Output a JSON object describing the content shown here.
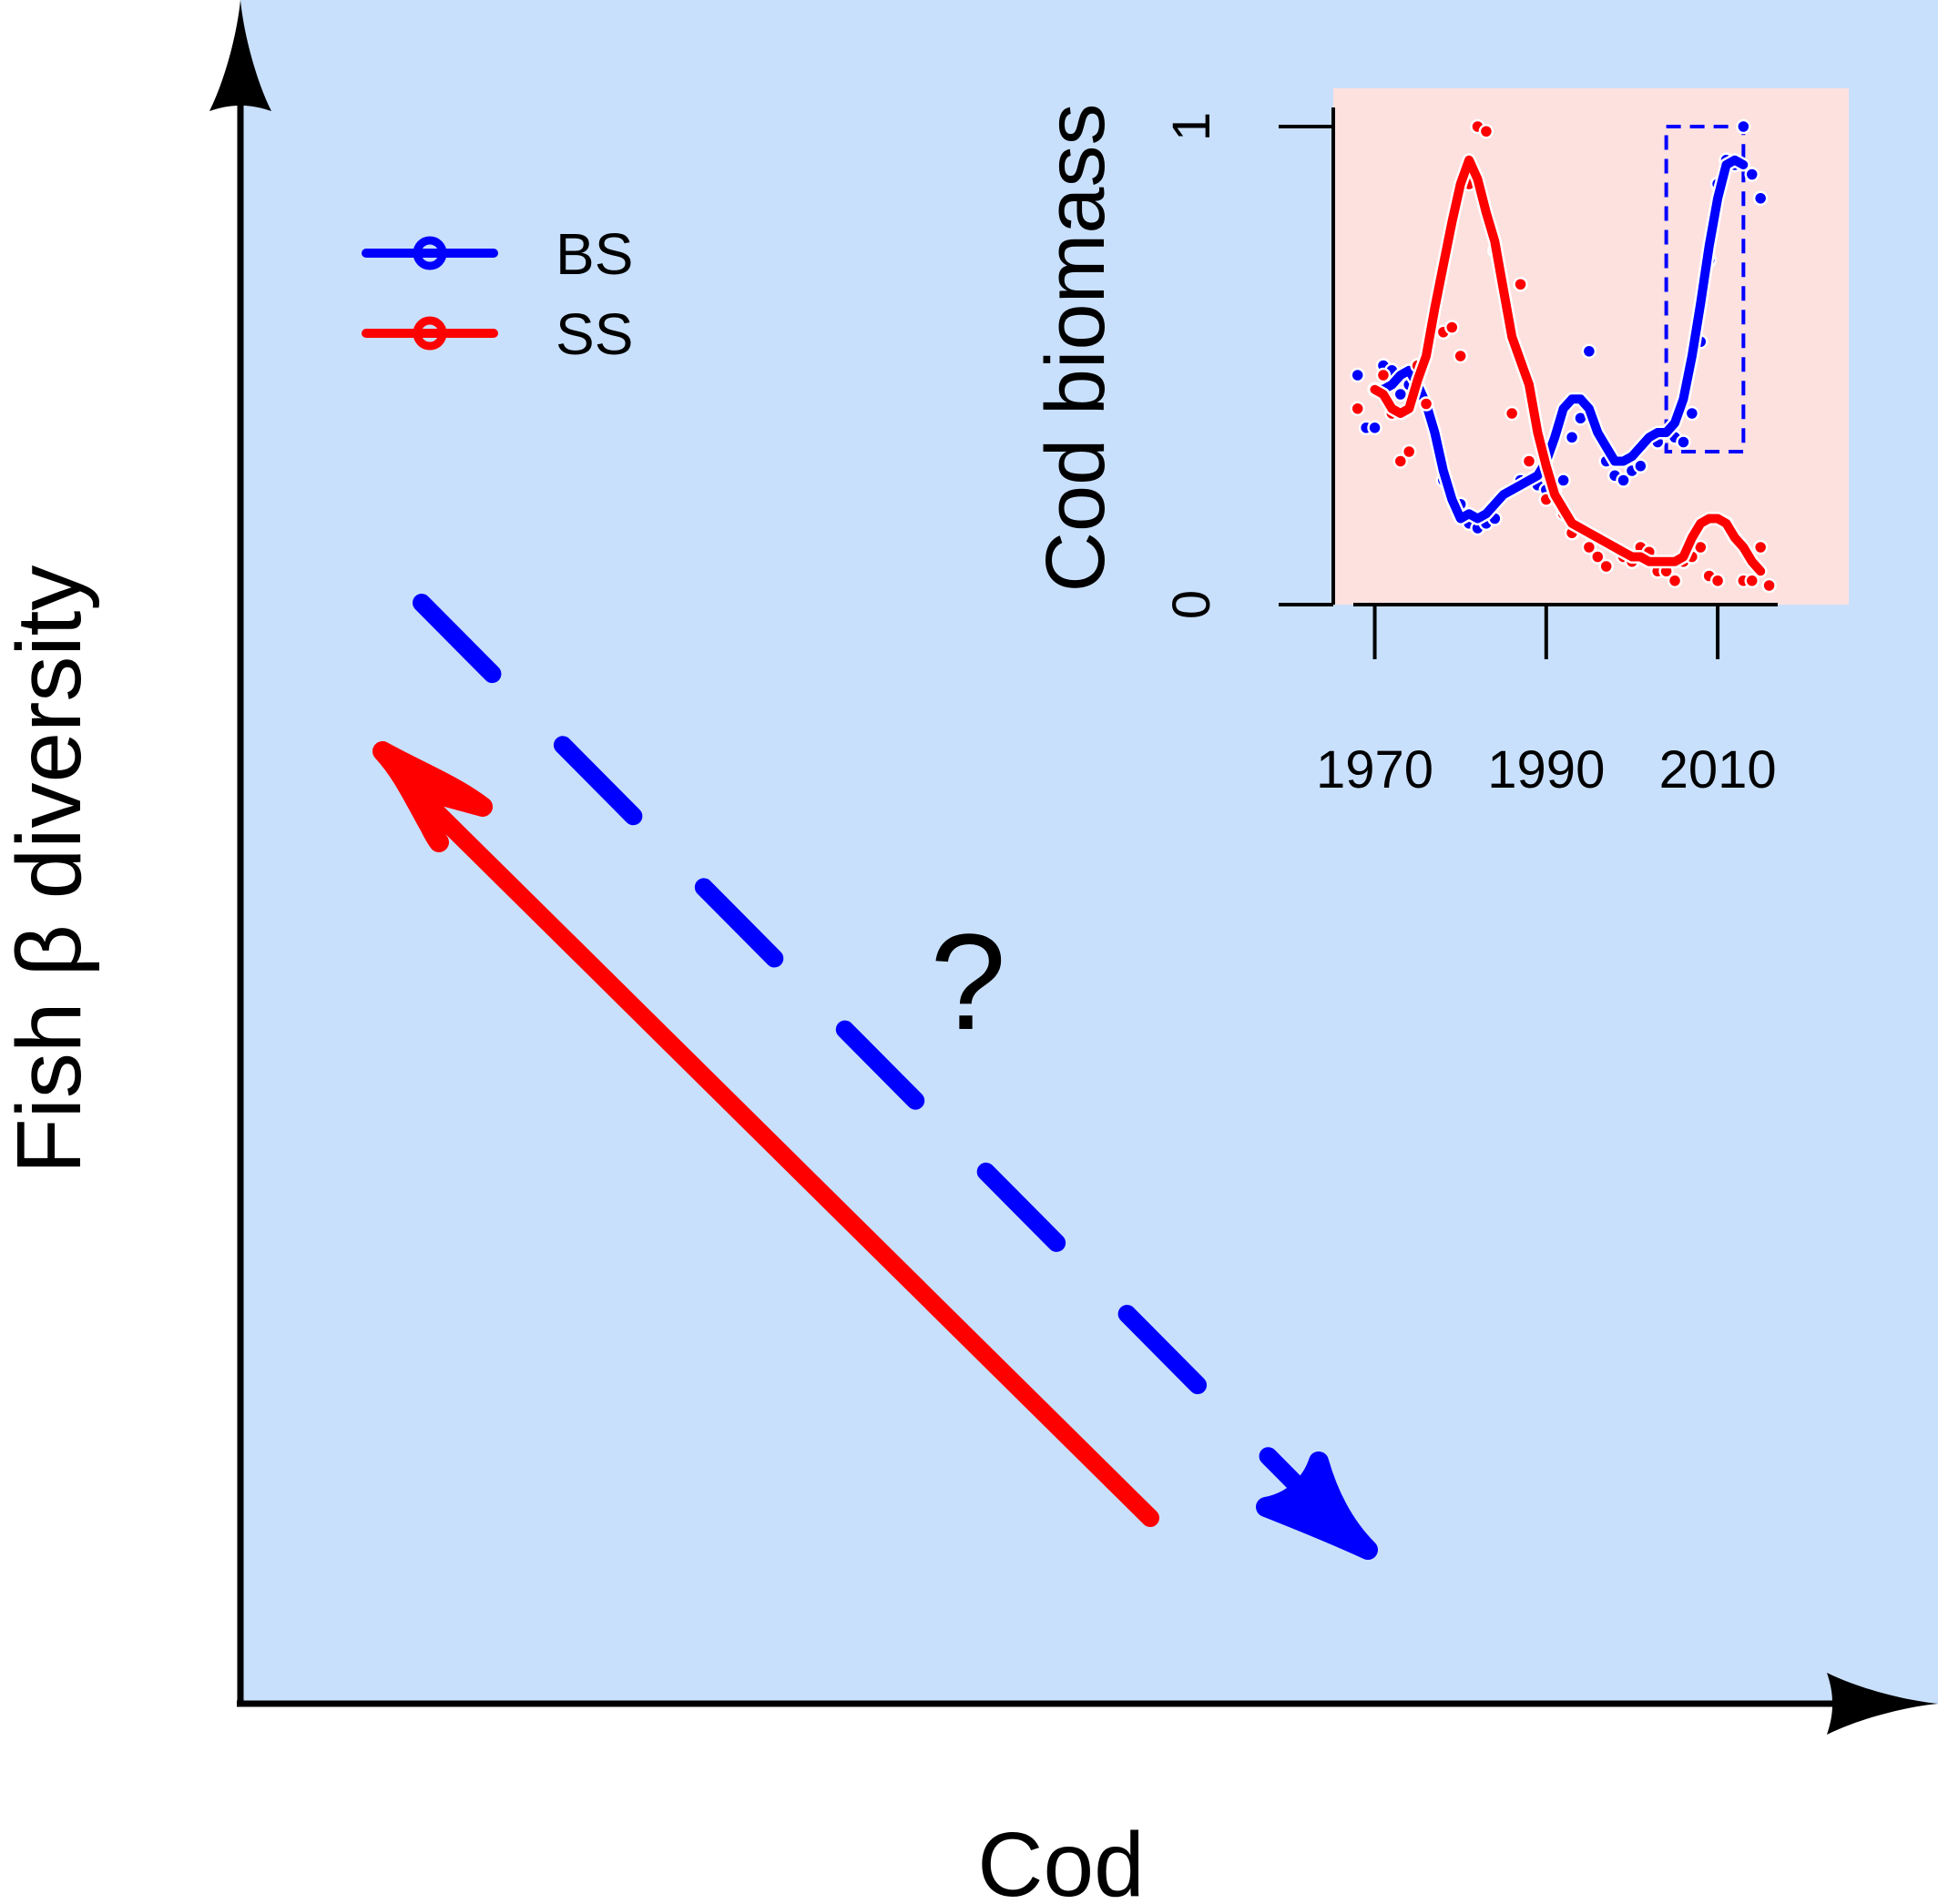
{
  "colors": {
    "panel_background": "#c9e0fc",
    "inset_background": "#fde1df",
    "bs": "#0000ff",
    "ss": "#ff0000",
    "axis": "#000000"
  },
  "main_panel": {
    "xlabel": "Cod",
    "ylabel": "Fish β diversity",
    "question_mark": "?",
    "legend": {
      "position": "top-left",
      "entries": [
        {
          "label": "BS",
          "color": "#0000ff"
        },
        {
          "label": "SS",
          "color": "#ff0000"
        }
      ]
    },
    "arrows": [
      {
        "series": "SS",
        "style": "solid",
        "direction": "cod down, β diversity up"
      },
      {
        "series": "BS",
        "style": "dashed",
        "direction": "cod up, β diversity down",
        "uncertain": true
      }
    ]
  },
  "chart_data": {
    "type": "line",
    "inset": true,
    "ylabel": "Cod biomass",
    "xlabel": "",
    "xlim": [
      1967.5,
      2017
    ],
    "ylim": [
      0,
      1.04
    ],
    "xticks": [
      1970,
      1990,
      2010
    ],
    "yticks": [
      0,
      1
    ],
    "xtick_labels": [
      "1970",
      "1990",
      "2010"
    ],
    "ytick_labels": [
      "0",
      "1"
    ],
    "grid": false,
    "highlight_box": {
      "color": "#0000ff",
      "style": "dashed",
      "x": [
        2004,
        2013
      ],
      "y": [
        0.32,
        1.0
      ]
    },
    "series": [
      {
        "name": "BS",
        "color": "#0000ff",
        "smooth": {
          "x": [
            1970,
            1971,
            1972,
            1973,
            1974,
            1975,
            1976,
            1977,
            1978,
            1979,
            1980,
            1981,
            1982,
            1983,
            1984,
            1985,
            1986,
            1987,
            1988,
            1989,
            1990,
            1991,
            1992,
            1993,
            1994,
            1995,
            1996,
            1997,
            1998,
            1999,
            2000,
            2001,
            2002,
            2003,
            2004,
            2005,
            2006,
            2007,
            2008,
            2009,
            2010,
            2011,
            2012,
            2013
          ],
          "y": [
            0.45,
            0.45,
            0.46,
            0.48,
            0.49,
            0.46,
            0.42,
            0.36,
            0.28,
            0.22,
            0.18,
            0.19,
            0.18,
            0.19,
            0.21,
            0.23,
            0.24,
            0.25,
            0.26,
            0.27,
            0.3,
            0.35,
            0.41,
            0.43,
            0.43,
            0.41,
            0.36,
            0.33,
            0.3,
            0.3,
            0.31,
            0.33,
            0.35,
            0.36,
            0.36,
            0.38,
            0.43,
            0.52,
            0.63,
            0.75,
            0.85,
            0.92,
            0.93,
            0.92
          ]
        },
        "points": {
          "x": [
            1968,
            1969,
            1970,
            1971,
            1972,
            1973,
            1974,
            1976,
            1978,
            1980,
            1981,
            1982,
            1983,
            1984,
            1987,
            1988,
            1989,
            1990,
            1991,
            1992,
            1993,
            1994,
            1995,
            1997,
            1998,
            1999,
            2000,
            2001,
            2003,
            2004,
            2005,
            2006,
            2007,
            2008,
            2009,
            2010,
            2011,
            2012,
            2013,
            2014,
            2015
          ],
          "y": [
            0.48,
            0.37,
            0.37,
            0.5,
            0.49,
            0.44,
            0.46,
            0.42,
            0.26,
            0.21,
            0.17,
            0.16,
            0.17,
            0.18,
            0.26,
            0.3,
            0.25,
            0.24,
            0.24,
            0.26,
            0.35,
            0.39,
            0.53,
            0.3,
            0.27,
            0.26,
            0.28,
            0.29,
            0.34,
            0.36,
            0.35,
            0.34,
            0.4,
            0.55,
            0.72,
            0.88,
            0.93,
            0.92,
            1.0,
            0.9,
            0.85
          ]
        }
      },
      {
        "name": "SS",
        "color": "#ff0000",
        "smooth": {
          "x": [
            1970,
            1971,
            1972,
            1973,
            1974,
            1975,
            1976,
            1977,
            1978,
            1979,
            1980,
            1981,
            1982,
            1983,
            1984,
            1985,
            1986,
            1987,
            1988,
            1989,
            1990,
            1991,
            1992,
            1993,
            1994,
            1995,
            1996,
            1997,
            1998,
            1999,
            2000,
            2001,
            2002,
            2003,
            2004,
            2005,
            2006,
            2007,
            2008,
            2009,
            2010,
            2011,
            2012,
            2013,
            2014,
            2015
          ],
          "y": [
            0.45,
            0.44,
            0.41,
            0.4,
            0.41,
            0.47,
            0.52,
            0.62,
            0.71,
            0.8,
            0.88,
            0.93,
            0.89,
            0.82,
            0.76,
            0.66,
            0.56,
            0.51,
            0.46,
            0.36,
            0.29,
            0.23,
            0.2,
            0.17,
            0.16,
            0.15,
            0.14,
            0.13,
            0.12,
            0.11,
            0.1,
            0.1,
            0.09,
            0.09,
            0.09,
            0.09,
            0.1,
            0.14,
            0.17,
            0.18,
            0.18,
            0.17,
            0.14,
            0.12,
            0.09,
            0.07
          ]
        },
        "points": {
          "x": [
            1968,
            1970,
            1971,
            1972,
            1973,
            1974,
            1975,
            1976,
            1978,
            1979,
            1980,
            1981,
            1982,
            1983,
            1984,
            1986,
            1987,
            1988,
            1990,
            1992,
            1993,
            1995,
            1996,
            1997,
            1999,
            2000,
            2001,
            2002,
            2003,
            2004,
            2005,
            2006,
            2007,
            2008,
            2009,
            2010,
            2011,
            2012,
            2013,
            2014,
            2015,
            2016
          ],
          "y": [
            0.41,
            0.45,
            0.48,
            0.4,
            0.3,
            0.32,
            0.5,
            0.42,
            0.57,
            0.58,
            0.52,
            0.88,
            1.0,
            0.99,
            0.74,
            0.4,
            0.67,
            0.3,
            0.22,
            0.19,
            0.15,
            0.12,
            0.1,
            0.08,
            0.1,
            0.09,
            0.12,
            0.11,
            0.07,
            0.07,
            0.05,
            0.09,
            0.1,
            0.12,
            0.06,
            0.05,
            0.17,
            0.14,
            0.05,
            0.05,
            0.12,
            0.04
          ]
        }
      }
    ]
  }
}
